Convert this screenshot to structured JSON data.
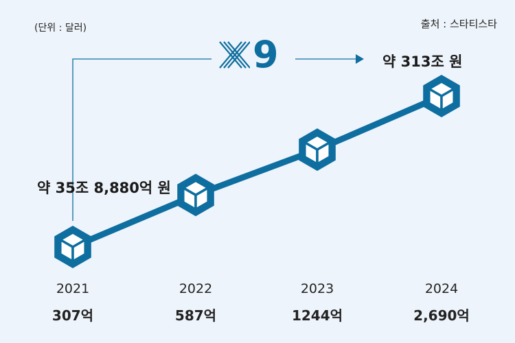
{
  "unit_note": "(단위 : 달러)",
  "source_note": "출처 : 스타티스타",
  "start_annotation": "약 35조 8,880억 원",
  "end_annotation": "약 313조 원",
  "multiplier": "9",
  "colors": {
    "accent": "#0e6e9f",
    "background": "#eef4fb"
  },
  "icons": [
    "cube-icon"
  ],
  "chart_data": {
    "type": "line",
    "categories": [
      "2021",
      "2022",
      "2023",
      "2024"
    ],
    "values": [
      307,
      587,
      1244,
      2690
    ],
    "value_labels": [
      "307억",
      "587억",
      "1244억",
      "2,690억"
    ],
    "unit": "달러",
    "grid": false
  }
}
